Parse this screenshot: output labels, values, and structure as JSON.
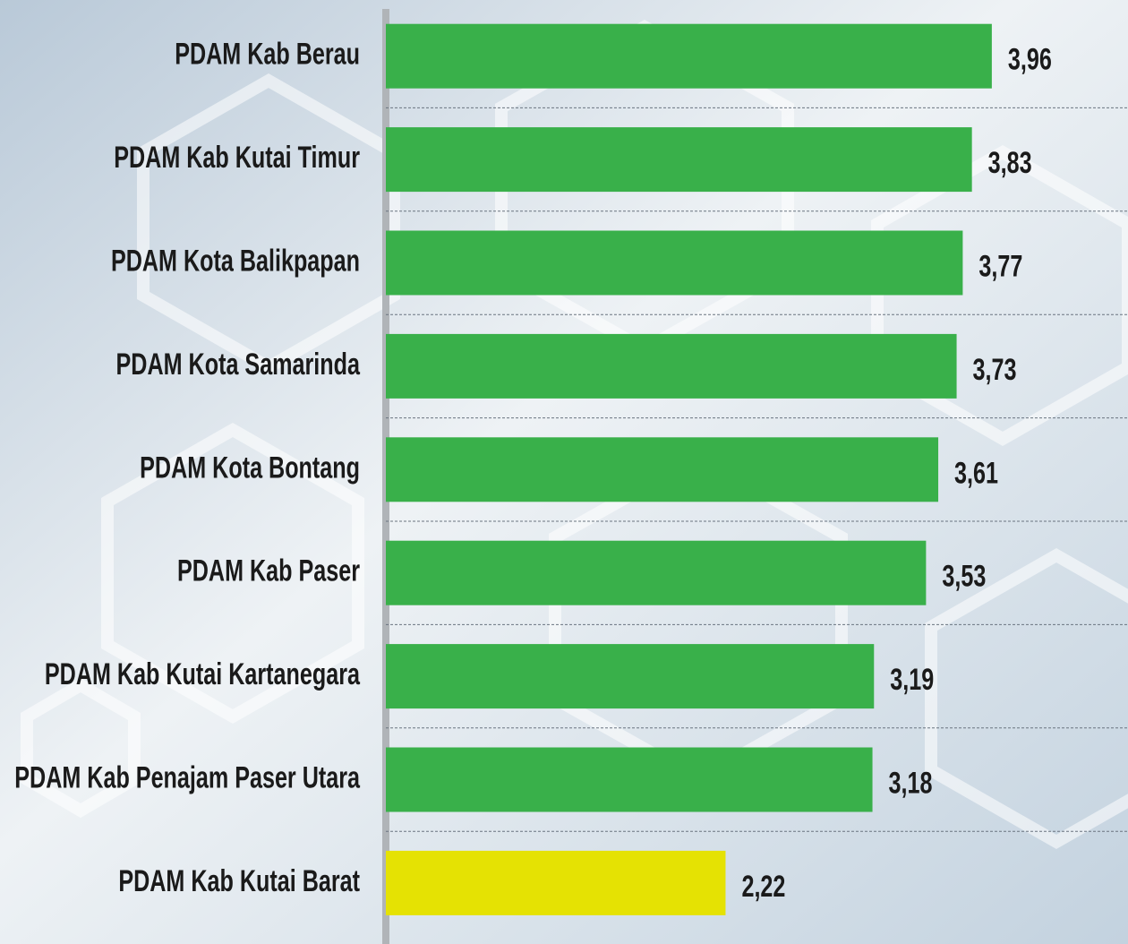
{
  "chart_data": {
    "type": "bar",
    "orientation": "horizontal",
    "categories": [
      "PDAM Kab Berau",
      "PDAM Kab Kutai Timur",
      "PDAM Kota Balikpapan",
      "PDAM Kota Samarinda",
      "PDAM Kota Bontang",
      "PDAM Kab Paser",
      "PDAM Kab Kutai Kartanegara",
      "PDAM Kab Penajam Paser Utara",
      "PDAM Kab Kutai Barat"
    ],
    "values": [
      3.96,
      3.83,
      3.77,
      3.73,
      3.61,
      3.53,
      3.19,
      3.18,
      2.22
    ],
    "value_labels": [
      "3,96",
      "3,83",
      "3,77",
      "3,73",
      "3,61",
      "3,53",
      "3,19",
      "3,18",
      "2,22"
    ],
    "colors": [
      "#39b04a",
      "#39b04a",
      "#39b04a",
      "#39b04a",
      "#39b04a",
      "#39b04a",
      "#39b04a",
      "#39b04a",
      "#e5e203"
    ],
    "xlim": [
      0,
      4.85
    ]
  }
}
